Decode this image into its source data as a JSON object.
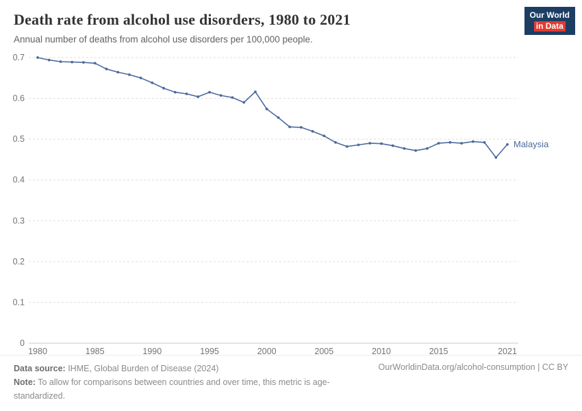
{
  "logo": {
    "line1": "Our World",
    "line2": "in Data"
  },
  "footer": {
    "datasource_label": "Data source:",
    "datasource_text": " IHME, Global Burden of Disease (2024)",
    "note_label": "Note:",
    "note_text": " To allow for comparisons between countries and over time, this metric is age-standardized.",
    "link_text": "OurWorldinData.org/alcohol-consumption | CC BY"
  },
  "colors": {
    "line": "#4c6a9c",
    "logo_navy": "#1d3d63",
    "logo_red": "#e03c31",
    "grid": "#dedede",
    "tick_text": "#737373"
  },
  "chart_data": {
    "type": "line",
    "title": "Death rate from alcohol use disorders, 1980 to 2021",
    "subtitle": "Annual number of deaths from alcohol use disorders per 100,000 people.",
    "xlabel": "",
    "ylabel": "",
    "ylim": [
      0,
      0.7
    ],
    "yticks": [
      0,
      0.1,
      0.2,
      0.3,
      0.4,
      0.5,
      0.6,
      0.7
    ],
    "xticks": [
      1980,
      1985,
      1990,
      1995,
      2000,
      2005,
      2010,
      2015,
      2021
    ],
    "grid": true,
    "legend_position": "end-of-line label",
    "x": [
      1980,
      1981,
      1982,
      1983,
      1984,
      1985,
      1986,
      1987,
      1988,
      1989,
      1990,
      1991,
      1992,
      1993,
      1994,
      1995,
      1996,
      1997,
      1998,
      1999,
      2000,
      2001,
      2002,
      2003,
      2004,
      2005,
      2006,
      2007,
      2008,
      2009,
      2010,
      2011,
      2012,
      2013,
      2014,
      2015,
      2016,
      2017,
      2018,
      2019,
      2020,
      2021
    ],
    "series": [
      {
        "name": "Malaysia",
        "color": "#4c6a9c",
        "values": [
          0.7,
          0.694,
          0.69,
          0.689,
          0.688,
          0.686,
          0.672,
          0.664,
          0.658,
          0.65,
          0.638,
          0.625,
          0.615,
          0.611,
          0.604,
          0.615,
          0.607,
          0.602,
          0.59,
          0.616,
          0.574,
          0.553,
          0.53,
          0.529,
          0.519,
          0.508,
          0.492,
          0.482,
          0.486,
          0.49,
          0.489,
          0.484,
          0.477,
          0.472,
          0.477,
          0.49,
          0.492,
          0.49,
          0.494,
          0.492,
          0.455,
          0.487
        ]
      }
    ]
  }
}
